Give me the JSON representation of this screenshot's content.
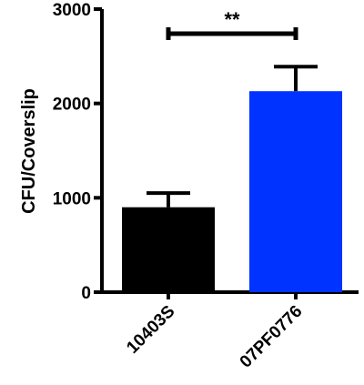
{
  "chart_data": {
    "type": "bar",
    "title": "",
    "xlabel": "",
    "ylabel": "CFU/Coverslip",
    "ylim": [
      0,
      3000
    ],
    "yticks": [
      0,
      1000,
      2000,
      3000
    ],
    "categories": [
      "10403S",
      "07PF0776"
    ],
    "values": [
      900,
      2130
    ],
    "errors": [
      150,
      260
    ],
    "colors": [
      "#000000",
      "#0033ff"
    ],
    "grid": false,
    "annotations": [
      {
        "text": "**",
        "between": [
          "10403S",
          "07PF0776"
        ]
      }
    ]
  }
}
